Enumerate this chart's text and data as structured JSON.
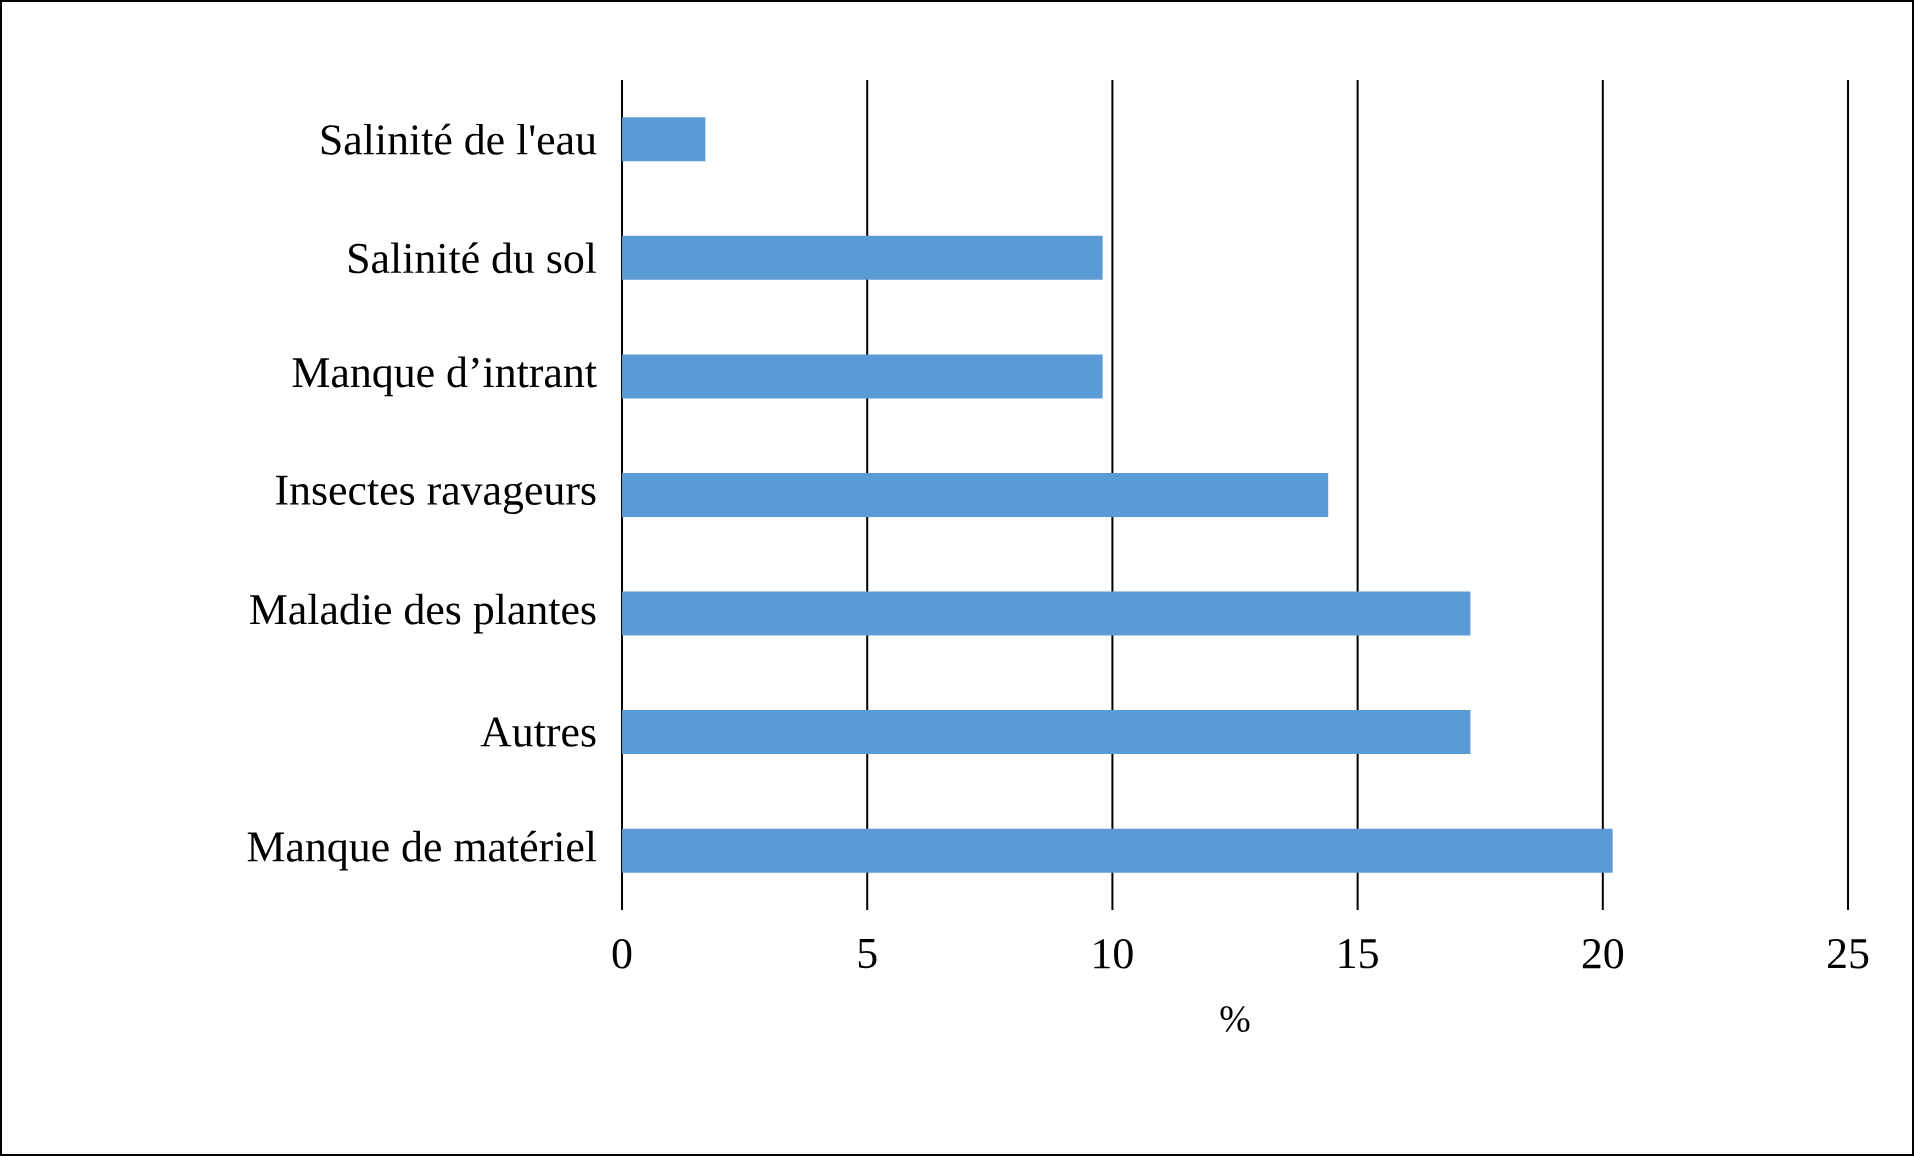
{
  "chart_data": {
    "type": "bar",
    "orientation": "horizontal",
    "xlabel": "%",
    "categories": [
      "Salinité de l'eau",
      "Salinité du sol",
      "Manque d’intrant",
      "Insectes ravageurs",
      "Maladie des plantes",
      "Autres",
      "Manque de matériel"
    ],
    "values": [
      1.7,
      9.8,
      9.8,
      14.4,
      17.3,
      17.3,
      20.2
    ],
    "color": "#5b9bd5",
    "xlim": [
      0,
      25
    ],
    "xticks": [
      0,
      5,
      10,
      15,
      20,
      25
    ],
    "grid": "x"
  }
}
